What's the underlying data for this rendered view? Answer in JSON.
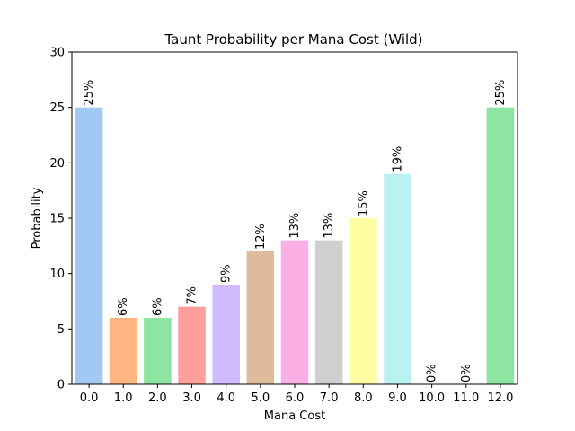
{
  "chart_data": {
    "type": "bar",
    "title": "Taunt Probability per Mana Cost (Wild)",
    "xlabel": "Mana Cost",
    "ylabel": "Probability",
    "ylim": [
      0,
      30
    ],
    "yticks": [
      0,
      5,
      10,
      15,
      20,
      25,
      30
    ],
    "categories": [
      "0.0",
      "1.0",
      "2.0",
      "3.0",
      "4.0",
      "5.0",
      "6.0",
      "7.0",
      "8.0",
      "9.0",
      "10.0",
      "11.0",
      "12.0"
    ],
    "values": [
      25,
      6,
      6,
      7,
      9,
      12,
      13,
      13,
      15,
      19,
      0,
      0,
      25
    ],
    "labels": [
      "25%",
      "6%",
      "6%",
      "7%",
      "9%",
      "12%",
      "13%",
      "13%",
      "15%",
      "19%",
      "0%",
      "0%",
      "25%"
    ],
    "colors": [
      "#a1c9f4",
      "#ffb482",
      "#8de5a1",
      "#ff9f9b",
      "#d0bbff",
      "#debb9b",
      "#fab0e4",
      "#cfcfcf",
      "#fffea3",
      "#b9f2f0",
      "#a1c9f4",
      "#ffb482",
      "#8de5a1"
    ],
    "grid": false,
    "legend": "none"
  }
}
